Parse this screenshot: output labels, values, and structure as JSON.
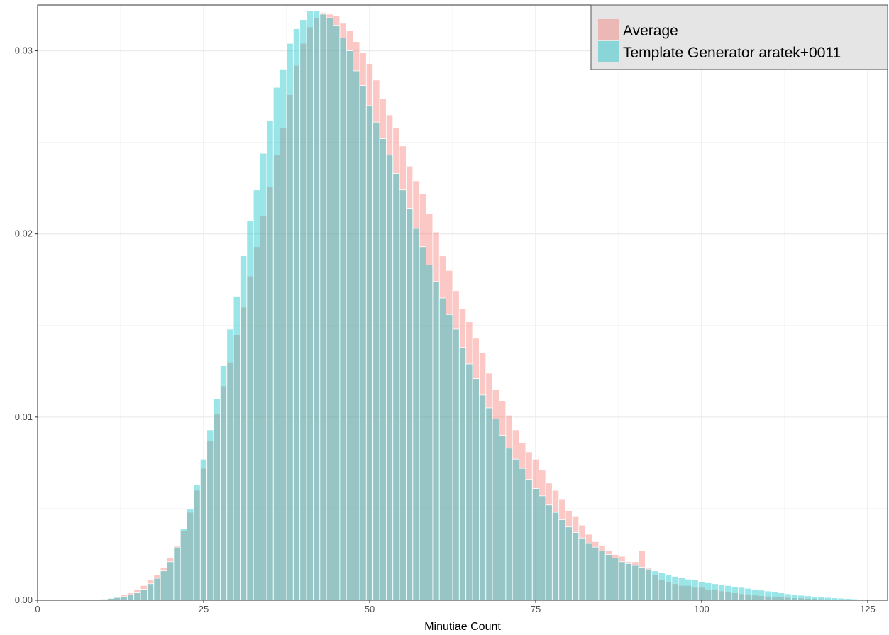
{
  "chart_data": {
    "type": "bar",
    "subtype": "overlaid-histogram",
    "title": "",
    "xlabel": "Minutiae Count",
    "ylabel": "",
    "xlim": [
      0,
      128
    ],
    "ylim": [
      0,
      0.0325
    ],
    "x_ticks": [
      0,
      25,
      50,
      75,
      100,
      125
    ],
    "y_ticks": [
      0.0,
      0.01,
      0.02,
      0.03
    ],
    "y_tick_labels": [
      "0.00",
      "0.01",
      "0.02",
      "0.03"
    ],
    "grid": true,
    "legend_position": "top-right",
    "bins_x": [
      8,
      9,
      10,
      11,
      12,
      13,
      14,
      15,
      16,
      17,
      18,
      19,
      20,
      21,
      22,
      23,
      24,
      25,
      26,
      27,
      28,
      29,
      30,
      31,
      32,
      33,
      34,
      35,
      36,
      37,
      38,
      39,
      40,
      41,
      42,
      43,
      44,
      45,
      46,
      47,
      48,
      49,
      50,
      51,
      52,
      53,
      54,
      55,
      56,
      57,
      58,
      59,
      60,
      61,
      62,
      63,
      64,
      65,
      66,
      67,
      68,
      69,
      70,
      71,
      72,
      73,
      74,
      75,
      76,
      77,
      78,
      79,
      80,
      81,
      82,
      83,
      84,
      85,
      86,
      87,
      88,
      89,
      90,
      91,
      92,
      93,
      94,
      95,
      96,
      97,
      98,
      99,
      100,
      101,
      102,
      103,
      104,
      105,
      106,
      107,
      108,
      109,
      110,
      111,
      112,
      113,
      114,
      115,
      116,
      117,
      118,
      119,
      120,
      121,
      122,
      123,
      124,
      125,
      126,
      127
    ],
    "series": [
      {
        "name": "Average",
        "color": "#F8766D",
        "values": [
          2e-05,
          4e-05,
          8e-05,
          0.00013,
          0.0002,
          0.0003,
          0.0004,
          0.0006,
          0.0008,
          0.0011,
          0.0014,
          0.0018,
          0.0023,
          0.003,
          0.0038,
          0.0048,
          0.006,
          0.0072,
          0.0087,
          0.0102,
          0.0117,
          0.013,
          0.0145,
          0.016,
          0.0177,
          0.0193,
          0.021,
          0.0226,
          0.0243,
          0.0258,
          0.0276,
          0.0292,
          0.0304,
          0.0313,
          0.0318,
          0.0321,
          0.032,
          0.0319,
          0.0315,
          0.0311,
          0.0305,
          0.0299,
          0.0293,
          0.0284,
          0.0274,
          0.0265,
          0.0258,
          0.0248,
          0.0237,
          0.0229,
          0.0222,
          0.0211,
          0.0201,
          0.0188,
          0.018,
          0.0169,
          0.0159,
          0.0152,
          0.0143,
          0.0135,
          0.0124,
          0.0115,
          0.0109,
          0.0101,
          0.0093,
          0.0086,
          0.0081,
          0.0077,
          0.0071,
          0.0064,
          0.006,
          0.0055,
          0.0049,
          0.0046,
          0.0041,
          0.0036,
          0.0032,
          0.003,
          0.0027,
          0.0025,
          0.0024,
          0.0021,
          0.0021,
          0.0027,
          0.0018,
          0.0014,
          0.0011,
          0.001,
          0.0009,
          0.0008,
          0.0008,
          0.0007,
          0.0007,
          0.0006,
          0.0006,
          0.0005,
          0.00045,
          0.0004,
          0.00035,
          0.0003,
          0.00028,
          0.00025,
          0.00022,
          0.0002,
          0.00018,
          0.00015,
          0.00013,
          0.00012,
          0.0001,
          9e-05,
          7e-05,
          6e-05,
          5e-05,
          4e-05,
          3e-05,
          3e-05,
          2e-05,
          2e-05,
          1e-05,
          1e-05
        ]
      },
      {
        "name": "Template Generator aratek+0011",
        "color": "#00BFC4",
        "values": [
          2e-05,
          3e-05,
          6e-05,
          0.0001,
          0.00015,
          0.0002,
          0.0003,
          0.0004,
          0.0006,
          0.0009,
          0.0012,
          0.0016,
          0.0021,
          0.0029,
          0.0039,
          0.005,
          0.0063,
          0.0077,
          0.0093,
          0.011,
          0.0128,
          0.0148,
          0.0166,
          0.0188,
          0.0207,
          0.0224,
          0.0244,
          0.0262,
          0.028,
          0.029,
          0.0304,
          0.0312,
          0.0317,
          0.0322,
          0.0322,
          0.032,
          0.0318,
          0.0314,
          0.0307,
          0.03,
          0.0289,
          0.0281,
          0.027,
          0.0261,
          0.0252,
          0.0243,
          0.0233,
          0.0224,
          0.0214,
          0.0203,
          0.0193,
          0.0183,
          0.0174,
          0.0165,
          0.0156,
          0.0148,
          0.0138,
          0.0129,
          0.0121,
          0.0112,
          0.0105,
          0.0099,
          0.009,
          0.0083,
          0.0077,
          0.0072,
          0.0066,
          0.0061,
          0.0057,
          0.0052,
          0.0048,
          0.0044,
          0.004,
          0.0037,
          0.0034,
          0.0031,
          0.0029,
          0.0027,
          0.0025,
          0.0023,
          0.0021,
          0.002,
          0.0019,
          0.0018,
          0.0017,
          0.0016,
          0.0015,
          0.0014,
          0.0013,
          0.00125,
          0.00115,
          0.0011,
          0.001,
          0.00095,
          0.0009,
          0.00085,
          0.0008,
          0.00075,
          0.0007,
          0.00065,
          0.0006,
          0.00055,
          0.0005,
          0.00045,
          0.0004,
          0.00035,
          0.0003,
          0.00027,
          0.00024,
          0.0002,
          0.00018,
          0.00015,
          0.00013,
          0.00011,
          9e-05,
          7e-05,
          5e-05,
          4e-05,
          3e-05,
          2e-05
        ]
      }
    ]
  }
}
